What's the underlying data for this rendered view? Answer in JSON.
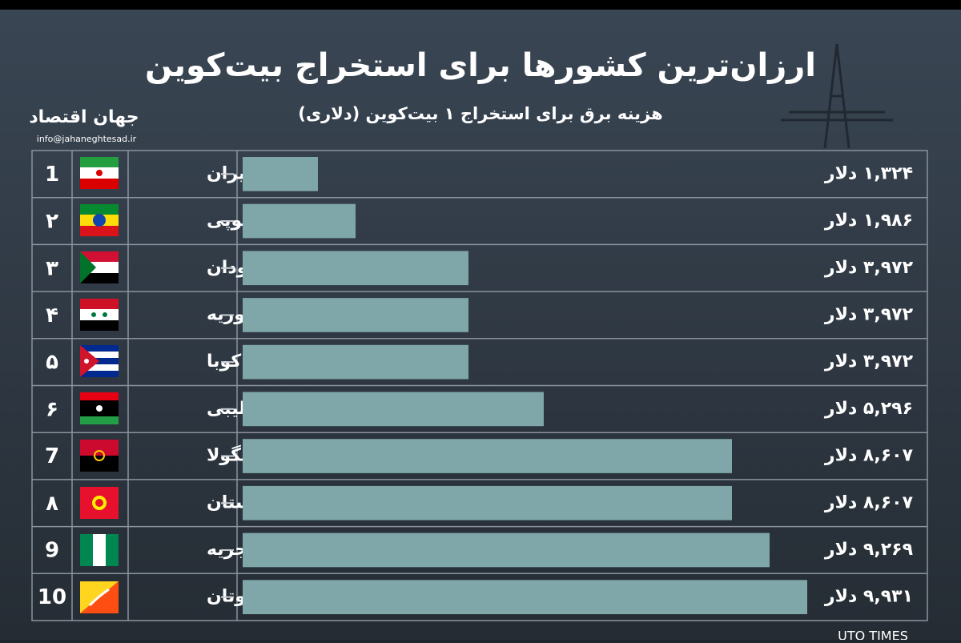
{
  "chart_data": {
    "type": "bar",
    "title": "ارزان‌ترین کشورها برای استخراج بیت‌کوین",
    "subtitle": "هزینه برق برای استخراج ۱ بیت‌کوین (دلاری)",
    "ranks": [
      "1",
      "۲",
      "۳",
      "۴",
      "۵",
      "۶",
      "7",
      "۸",
      "9",
      "10"
    ],
    "categories": [
      "ایران",
      "اتیوپی",
      "سودان",
      "سوریه",
      "کوبا",
      "لیبی",
      "آنگولا",
      "قرقیزستان",
      "نیجریه",
      "بوتان"
    ],
    "values": [
      1324,
      1986,
      3972,
      3972,
      3972,
      5296,
      8607,
      8607,
      9269,
      9931
    ],
    "value_labels": [
      "۱,۳۲۴ دلار",
      "۱,۹۸۶ دلار",
      "۳,۹۷۲ دلار",
      "۳,۹۷۲ دلار",
      "۳,۹۷۲ دلار",
      "۵,۲۹۶ دلار",
      "۸,۶۰۷ دلار",
      "۸,۶۰۷ دلار",
      "۹,۲۶۹ دلار",
      "۹,۹۳۱ دلار"
    ],
    "color": "#7fa6a8"
  },
  "logo": {
    "name": "جهان اقتصاد",
    "email": "info@jahaneghtesad.ir"
  },
  "watermark": "UTO TIMES"
}
